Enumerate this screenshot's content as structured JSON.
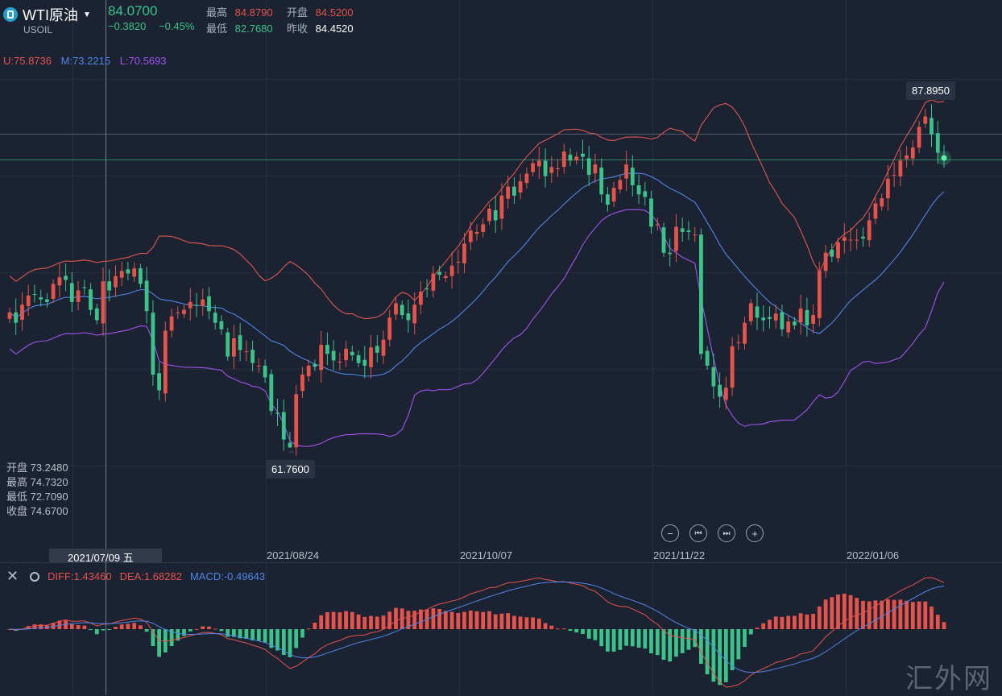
{
  "header": {
    "symbol": "WTI原油",
    "code": "USOIL",
    "last_price": "84.0700",
    "change": "−0.3820",
    "change_pct": "−0.45%",
    "high_label": "最高",
    "high_value": "84.8790",
    "open_label": "开盘",
    "open_value": "84.5200",
    "low_label": "最低",
    "low_value": "82.7680",
    "prev_close_label": "昨收",
    "prev_close_value": "84.4520"
  },
  "boll_legend": {
    "upper": "U:75.8736",
    "middle": "M:73.2215",
    "lower": "L:70.5693"
  },
  "crosshair_ohlc": {
    "open": "开盘 73.2480",
    "high": "最高 74.7320",
    "low": "最低 72.7090",
    "close": "收盘 74.6700"
  },
  "price_tags": {
    "max": "87.8950",
    "min": "61.7600"
  },
  "x_axis": {
    "selected_date": "2021/07/09 五",
    "dates": [
      "2021/08/24",
      "2021/10/07",
      "2021/11/22",
      "2022/01/06"
    ]
  },
  "controls": {
    "zoom_out": "−",
    "prev": "⏮",
    "next": "⏭",
    "zoom_in": "+"
  },
  "macd_legend": {
    "diff": "DIFF:1.43460",
    "dea": "DEA:1.68282",
    "macd": "MACD:-0.49643"
  },
  "watermark": "汇外网",
  "colors": {
    "up": "#e5534b",
    "down": "#3cc38a",
    "boll_upper": "#e0574f",
    "boll_middle": "#4f86e8",
    "boll_lower": "#a055ee",
    "background": "#1b2231"
  },
  "chart_data": {
    "type": "candlestick",
    "instrument": "WTI原油 USOIL",
    "price_range": [
      60,
      90
    ],
    "highest": 87.895,
    "lowest": 61.76,
    "closes": [
      72.2,
      71.4,
      72.8,
      73.5,
      73.6,
      73.2,
      73.0,
      74.4,
      74.9,
      74.7,
      73.0,
      73.9,
      74.1,
      72.4,
      71.6,
      74.6,
      73.9,
      75.0,
      75.4,
      75.2,
      75.6,
      74.4,
      72.3,
      67.4,
      66.2,
      70.8,
      71.9,
      72.2,
      72.4,
      73.0,
      72.7,
      73.2,
      72.3,
      71.4,
      70.9,
      68.8,
      70.2,
      69.3,
      69.2,
      68.3,
      68.1,
      67.2,
      64.6,
      64.4,
      62.4,
      61.8,
      65.9,
      67.4,
      68.1,
      68.0,
      69.7,
      69.0,
      68.5,
      68.4,
      69.4,
      68.9,
      68.3,
      68.1,
      69.5,
      69.1,
      70.1,
      71.8,
      72.9,
      72.0,
      71.6,
      72.8,
      73.8,
      74.0,
      75.2,
      75.1,
      75.0,
      75.8,
      76.1,
      77.5,
      78.5,
      78.4,
      79.0,
      80.2,
      79.3,
      81.2,
      81.9,
      81.2,
      82.3,
      82.9,
      83.7,
      83.9,
      82.7,
      83.4,
      83.3,
      84.6,
      83.9,
      84.2,
      84.2,
      82.8,
      83.6,
      81.3,
      80.5,
      81.8,
      82.4,
      83.6,
      82.0,
      81.3,
      81.1,
      78.8,
      79.0,
      76.8,
      76.7,
      78.8,
      78.4,
      78.4,
      78.2,
      69.0,
      68.1,
      66.5,
      65.7,
      66.4,
      69.6,
      69.9,
      71.4,
      72.9,
      71.8,
      71.6,
      71.7,
      72.1,
      70.9,
      71.5,
      71.2,
      72.5,
      71.2,
      72.0,
      75.4,
      76.8,
      76.5,
      77.6,
      78.0,
      77.8,
      77.8,
      77.9,
      79.3,
      80.6,
      81.0,
      82.5,
      82.8,
      83.9,
      84.3,
      84.9,
      86.5,
      87.3,
      85.9,
      84.5,
      84.1
    ],
    "boll": {
      "upper": 75.8736,
      "middle": 73.2215,
      "lower": 70.5693
    },
    "crosshair": {
      "date": "2021/07/09",
      "open": 73.248,
      "high": 74.732,
      "low": 72.709,
      "close": 74.67
    },
    "x_ticks": [
      "2021/07/09",
      "2021/08/24",
      "2021/10/07",
      "2021/11/22",
      "2022/01/06"
    ]
  },
  "macd_data": {
    "diff": 1.4346,
    "dea": 1.68282,
    "macd": -0.49643
  }
}
